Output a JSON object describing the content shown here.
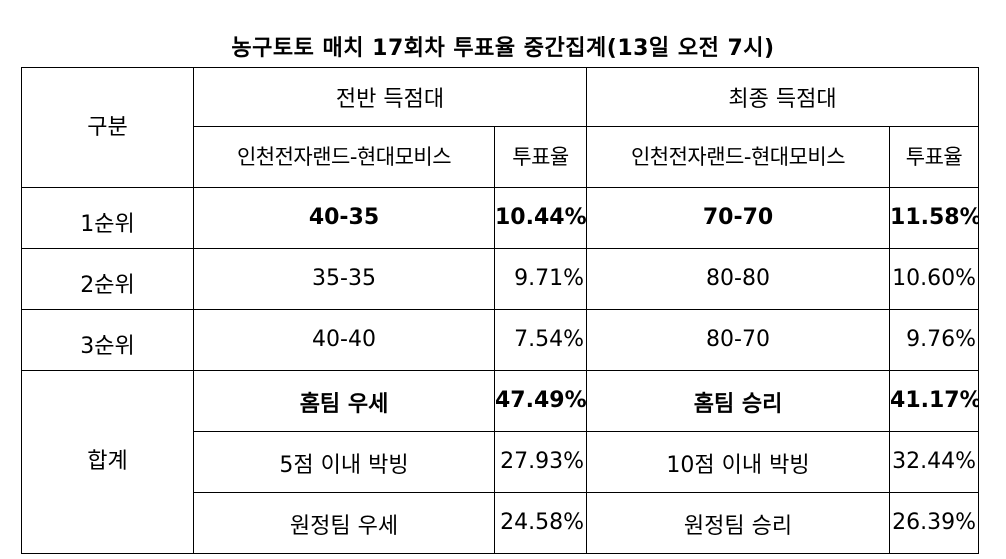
{
  "title": "농구토토 매치 17회차 투표율 중간집계(13일 오전 7시)",
  "headers": {
    "category": "구분",
    "first_half": "전반 득점대",
    "final": "최종 득점대",
    "matchup": "인천전자랜드-현대모비스",
    "vote_rate": "투표율"
  },
  "rows": [
    {
      "rank": "1순위",
      "half_score": "40-35",
      "half_rate": "10.44%",
      "final_score": "70-70",
      "final_rate": "11.58%"
    },
    {
      "rank": "2순위",
      "half_score": "35-35",
      "half_rate": "9.71%",
      "final_score": "80-80",
      "final_rate": "10.60%"
    },
    {
      "rank": "3순위",
      "half_score": "40-40",
      "half_rate": "7.54%",
      "final_score": "80-70",
      "final_rate": "9.76%"
    }
  ],
  "totals": {
    "label": "합계",
    "rows": [
      {
        "half_label": "홈팀 우세",
        "half_rate": "47.49%",
        "final_label": "홈팀 승리",
        "final_rate": "41.17%"
      },
      {
        "half_label": "5점 이내 박빙",
        "half_rate": "27.93%",
        "final_label": "10점 이내 박빙",
        "final_rate": "32.44%"
      },
      {
        "half_label": "원정팀 우세",
        "half_rate": "24.58%",
        "final_label": "원정팀 승리",
        "final_rate": "26.39%"
      }
    ]
  }
}
